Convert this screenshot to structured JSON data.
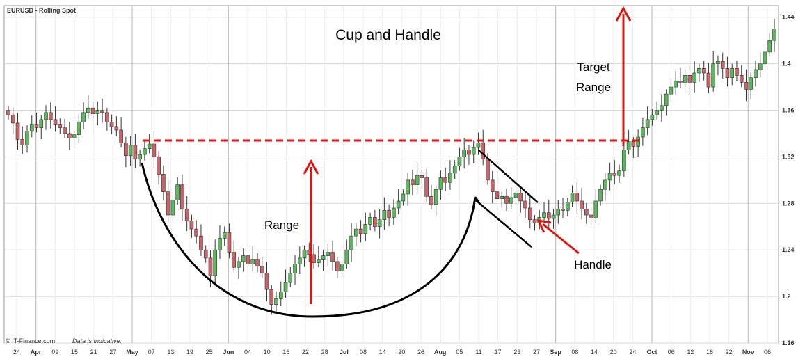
{
  "chart_data": {
    "type": "candlestick",
    "instrument_label": "EURUSD - Rolling Spot",
    "title": "Cup and Handle",
    "source_label": "© IT-Finance.com",
    "disclaimer": "Data is Indicative.",
    "ylim": [
      1.16,
      1.45
    ],
    "yticks": [
      "1.44",
      "1.4",
      "1.36",
      "1.32",
      "1.28",
      "1.24",
      "1.2",
      "1.16"
    ],
    "xticks": [
      "24",
      "Apr",
      "09",
      "15",
      "21",
      "27",
      "May",
      "07",
      "13",
      "19",
      "25",
      "Jun",
      "04",
      "10",
      "16",
      "22",
      "28",
      "Jul",
      "08",
      "14",
      "20",
      "26",
      "Aug",
      "05",
      "11",
      "17",
      "23",
      "27",
      "Sep",
      "08",
      "14",
      "20",
      "24",
      "Oct",
      "06",
      "12",
      "18",
      "22",
      "Nov",
      "06"
    ],
    "month_ticks": [
      "Apr",
      "May",
      "Jun",
      "Jul",
      "Aug",
      "Sep",
      "Oct",
      "Nov"
    ],
    "resistance_level": 1.334,
    "annotations": {
      "range": "Range",
      "handle": "Handle",
      "target_line1": "Target",
      "target_line2": "Range"
    },
    "closes": [
      1.356,
      1.349,
      1.335,
      1.33,
      1.342,
      1.348,
      1.345,
      1.352,
      1.358,
      1.352,
      1.348,
      1.345,
      1.34,
      1.336,
      1.339,
      1.35,
      1.358,
      1.362,
      1.357,
      1.36,
      1.358,
      1.35,
      1.346,
      1.343,
      1.332,
      1.321,
      1.33,
      1.318,
      1.322,
      1.327,
      1.331,
      1.32,
      1.305,
      1.29,
      1.27,
      1.283,
      1.296,
      1.275,
      1.265,
      1.258,
      1.252,
      1.24,
      1.233,
      1.218,
      1.24,
      1.25,
      1.255,
      1.238,
      1.225,
      1.23,
      1.235,
      1.228,
      1.232,
      1.226,
      1.22,
      1.206,
      1.193,
      1.198,
      1.204,
      1.212,
      1.22,
      1.228,
      1.233,
      1.24,
      1.236,
      1.229,
      1.232,
      1.235,
      1.238,
      1.23,
      1.222,
      1.228,
      1.24,
      1.252,
      1.258,
      1.254,
      1.262,
      1.268,
      1.26,
      1.266,
      1.274,
      1.268,
      1.276,
      1.282,
      1.288,
      1.3,
      1.296,
      1.304,
      1.302,
      1.286,
      1.279,
      1.292,
      1.302,
      1.298,
      1.306,
      1.312,
      1.32,
      1.326,
      1.322,
      1.328,
      1.332,
      1.318,
      1.3,
      1.29,
      1.284,
      1.286,
      1.28,
      1.285,
      1.289,
      1.282,
      1.276,
      1.266,
      1.263,
      1.268,
      1.272,
      1.267,
      1.27,
      1.275,
      1.274,
      1.281,
      1.289,
      1.282,
      1.275,
      1.27,
      1.268,
      1.282,
      1.292,
      1.3,
      1.306,
      1.304,
      1.308,
      1.326,
      1.333,
      1.329,
      1.337,
      1.345,
      1.352,
      1.356,
      1.36,
      1.364,
      1.374,
      1.38,
      1.385,
      1.384,
      1.39,
      1.384,
      1.392,
      1.396,
      1.392,
      1.38,
      1.4,
      1.402,
      1.396,
      1.388,
      1.396,
      1.39,
      1.384,
      1.378,
      1.388,
      1.395,
      1.4,
      1.41,
      1.42,
      1.43
    ]
  }
}
